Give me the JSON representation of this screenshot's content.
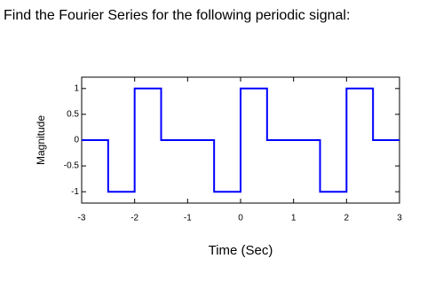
{
  "heading": "Find the Fourier Series for the following periodic signal:",
  "chart_data": {
    "type": "line",
    "x": [
      -3,
      -2.5,
      -2.5,
      -2,
      -2,
      -1.5,
      -1.5,
      -0.5,
      -0.5,
      0,
      0,
      0.5,
      0.5,
      1.5,
      1.5,
      2,
      2,
      2.5,
      2.5,
      3
    ],
    "series": [
      {
        "color": "#0000ff",
        "values": [
          0,
          0,
          -1,
          -1,
          1,
          1,
          0,
          0,
          -1,
          -1,
          1,
          1,
          0,
          0,
          -1,
          -1,
          1,
          1,
          0,
          0
        ]
      }
    ],
    "xlim": [
      -3,
      3
    ],
    "xticks": [
      -3,
      -2,
      -1,
      0,
      1,
      2,
      3
    ],
    "ylim": [
      -1.22,
      1.22
    ],
    "yticks": [
      -1,
      -0.5,
      0,
      0.5,
      1
    ],
    "xlabel": "Time (Sec)",
    "ylabel": "Magnitude",
    "grid": false
  }
}
